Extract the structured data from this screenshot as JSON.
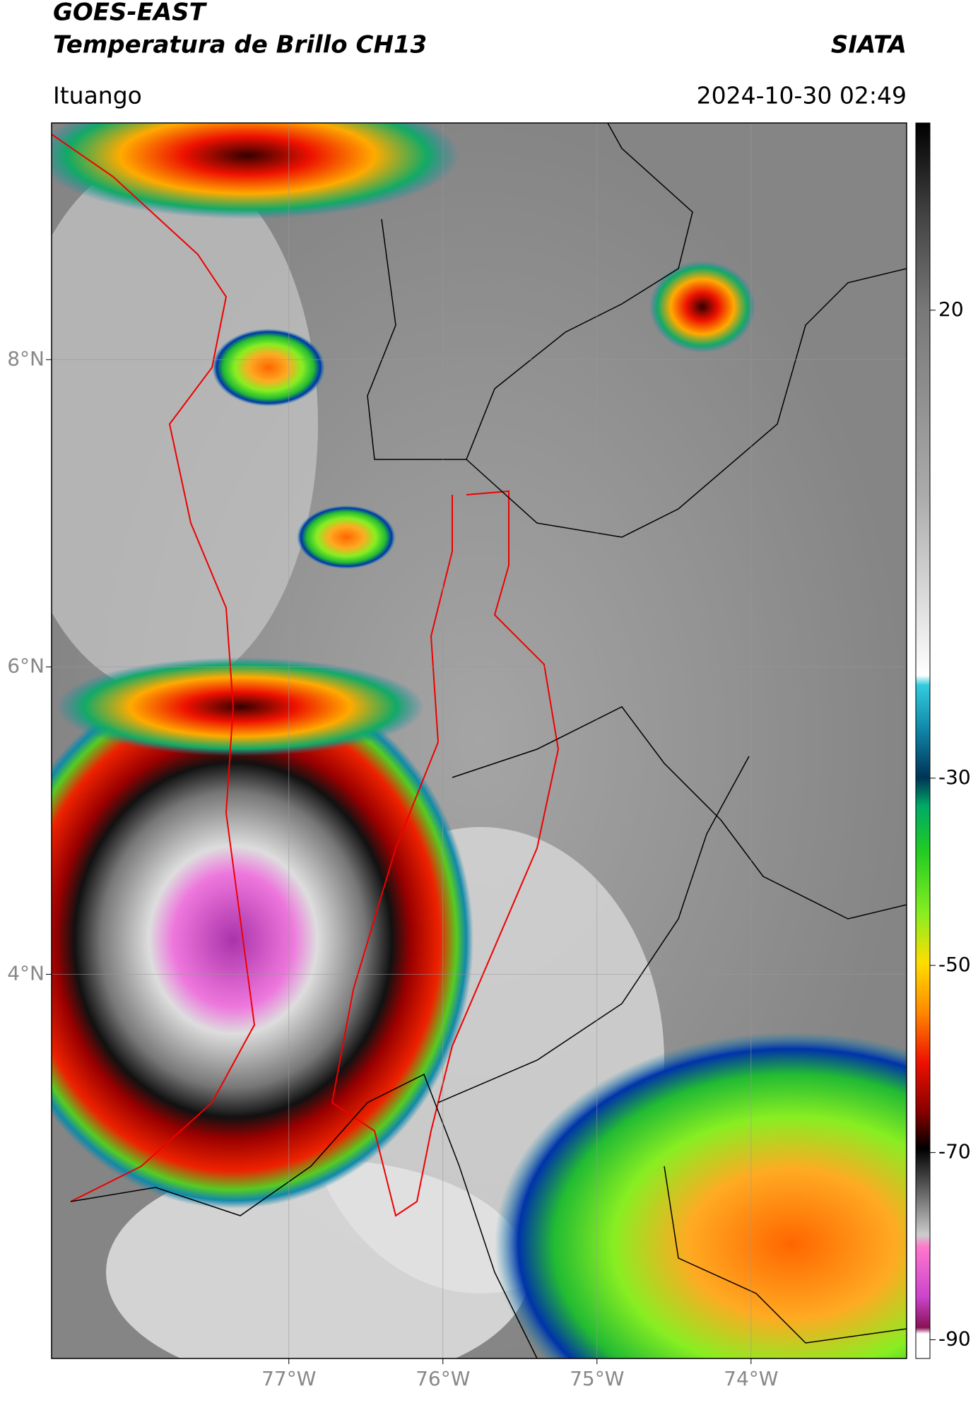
{
  "header": {
    "title": "GOES-EAST",
    "subtitle": "Temperatura de Brillo CH13",
    "source": "SIATA",
    "location": "Ituango",
    "datetime": "2024-10-30 02:49"
  },
  "map": {
    "lon_range": [
      -78.54,
      -72.99
    ],
    "lat_range": [
      1.5,
      9.54
    ],
    "lon_ticks": [
      {
        "value": -77,
        "label": "77°W"
      },
      {
        "value": -76,
        "label": "76°W"
      },
      {
        "value": -75,
        "label": "75°W"
      },
      {
        "value": -74,
        "label": "74°W"
      }
    ],
    "lat_ticks": [
      {
        "value": 8,
        "label": "8°N"
      },
      {
        "value": 6,
        "label": "6°N"
      },
      {
        "value": 4,
        "label": "4°N"
      }
    ]
  },
  "colorbar": {
    "range": [
      -92,
      40
    ],
    "ticks": [
      20,
      -30,
      -50,
      -70,
      -90
    ]
  }
}
